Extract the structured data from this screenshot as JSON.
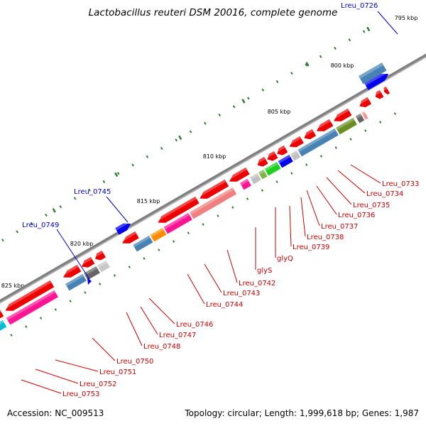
{
  "title": "Lactobacillus reuteri DSM 20016, complete genome",
  "footer": {
    "accession": "Accession: NC_009513",
    "summary": "Topology: circular; Length: 1,999,618 bp; Genes: 1,987"
  },
  "colors": {
    "forward_label": "#0000cc",
    "reverse_label": "#cc0000",
    "backbone": "#7f7f7f",
    "tick": "#2e7d32"
  },
  "ticks": [
    {
      "label": "795 kbp"
    },
    {
      "label": "800 kbp"
    },
    {
      "label": "805 kbp"
    },
    {
      "label": "810 kbp"
    },
    {
      "label": "815 kbp"
    },
    {
      "label": "820 kbp"
    },
    {
      "label": "825 kbp"
    }
  ],
  "forward_labels": [
    {
      "name": "Lreu_0726"
    },
    {
      "name": "Lreu_0745"
    },
    {
      "name": "Lreu_0749"
    }
  ],
  "reverse_labels": [
    {
      "name": "Lreu_0733"
    },
    {
      "name": "Lreu_0734"
    },
    {
      "name": "Lreu_0735"
    },
    {
      "name": "Lreu_0736"
    },
    {
      "name": "Lreu_0737"
    },
    {
      "name": "Lreu_0738"
    },
    {
      "name": "Lreu_0739"
    },
    {
      "name": "glyQ"
    },
    {
      "name": "glyS"
    },
    {
      "name": "Lreu_0742"
    },
    {
      "name": "Lreu_0743"
    },
    {
      "name": "Lreu_0744"
    },
    {
      "name": "Lreu_0746"
    },
    {
      "name": "Lreu_0747"
    },
    {
      "name": "Lreu_0748"
    },
    {
      "name": "Lreu_0750"
    },
    {
      "name": "Lreu_0751"
    },
    {
      "name": "Lreu_0752"
    },
    {
      "name": "Lreu_0753"
    }
  ]
}
